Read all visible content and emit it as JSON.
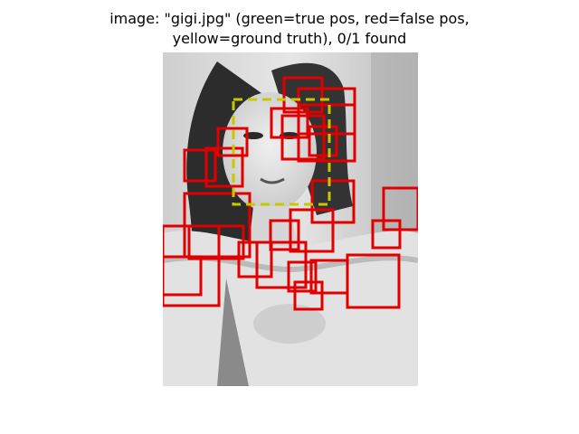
{
  "title": {
    "line1": "image: \"gigi.jpg\" (green=true pos, red=false pos,",
    "line2": "yellow=ground truth), 0/1 found"
  },
  "colors": {
    "true_pos": "#00c000",
    "false_pos": "#e00000",
    "ground_truth": "#c8c800"
  },
  "image": {
    "filename": "gigi.jpg",
    "content": "grayscale-portrait-woman"
  },
  "stats": {
    "found": 0,
    "total": 1
  }
}
